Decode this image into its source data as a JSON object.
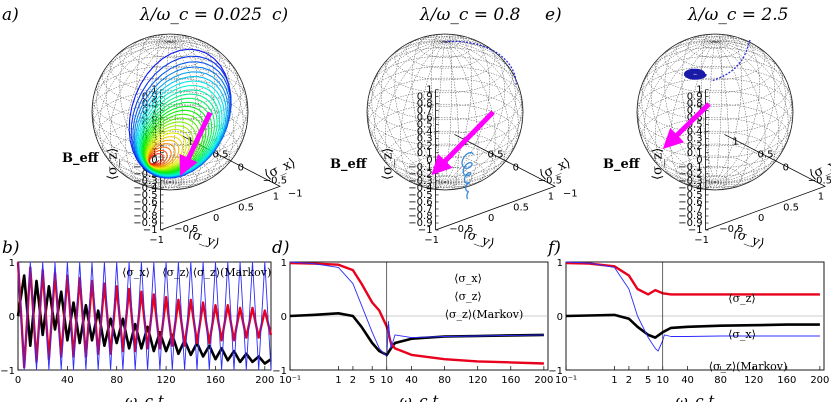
{
  "panels": {
    "a": {
      "letter": "a)",
      "title": "λ/ω_c = 0.025",
      "beff": "B_eff"
    },
    "c": {
      "letter": "c)",
      "title": "λ/ω_c = 0.8",
      "beff": "B_eff"
    },
    "e": {
      "letter": "e)",
      "title": "λ/ω_c = 2.5",
      "beff": "B_eff"
    },
    "b": {
      "letter": "b)"
    },
    "d": {
      "letter": "d)"
    },
    "f": {
      "letter": "f)"
    }
  },
  "sphere_axes": {
    "z_label": "⟨σ_z⟩",
    "y_label": "⟨σ_y⟩",
    "x_label": "⟨σ_x⟩",
    "z_ticks": [
      "1",
      "0.9",
      "0.8",
      "0.7",
      "0.6",
      "0.5",
      "0.4",
      "0.3",
      "0.2",
      "0.1",
      "0",
      "−0.1",
      "−0.2",
      "−0.3",
      "−0.4",
      "−0.5",
      "−0.6",
      "−0.7",
      "−0.8",
      "−0.9",
      "−1"
    ],
    "y_ticks": [
      "−1",
      "−0.5",
      "0",
      "0.5",
      "1"
    ],
    "x_ticks": [
      "−1",
      "−0.5",
      "0",
      "0.5",
      "1"
    ]
  },
  "colors": {
    "beff": "#ff00ff",
    "sigma_x": "#000000",
    "sigma_z": "#e8001c",
    "markov": "#2c2cff"
  },
  "legend": {
    "sx": "⟨σ_x⟩",
    "sz": "⟨σ_z⟩",
    "markov": "⟨σ_z⟩(Markov)"
  },
  "chart_data": [
    {
      "type": "line",
      "panel": "b",
      "xlabel": "ω_c t",
      "ylabel": "",
      "xlim": [
        0,
        205
      ],
      "ylim": [
        -1,
        1
      ],
      "xticks": [
        "0",
        "40",
        "80",
        "120",
        "160",
        "200"
      ],
      "yticks": [
        "1",
        "0",
        "−1"
      ],
      "series": [
        {
          "name": "⟨σ_x⟩",
          "x": [
            0,
            5,
            10,
            15,
            20,
            25,
            30,
            35,
            40,
            45,
            50,
            55,
            60,
            65,
            70,
            75,
            80,
            85,
            90,
            95,
            100,
            105,
            110,
            115,
            120,
            125,
            130,
            135,
            140,
            145,
            150,
            155,
            160,
            165,
            170,
            175,
            180,
            185,
            190,
            195,
            200,
            205
          ],
          "y": [
            0.0,
            0.75,
            -0.55,
            0.65,
            -0.35,
            0.55,
            -0.25,
            0.45,
            -0.45,
            0.25,
            -0.5,
            0.2,
            -0.45,
            0.1,
            -0.55,
            -0.05,
            -0.5,
            -0.05,
            -0.6,
            -0.15,
            -0.6,
            -0.2,
            -0.65,
            -0.3,
            -0.65,
            -0.35,
            -0.7,
            -0.45,
            -0.72,
            -0.5,
            -0.75,
            -0.55,
            -0.8,
            -0.6,
            -0.82,
            -0.65,
            -0.85,
            -0.7,
            -0.85,
            -0.75,
            -0.88,
            -0.8
          ]
        },
        {
          "name": "⟨σ_z⟩",
          "x": [
            0,
            5,
            10,
            15,
            20,
            25,
            30,
            35,
            40,
            45,
            50,
            55,
            60,
            65,
            70,
            75,
            80,
            85,
            90,
            95,
            100,
            105,
            110,
            115,
            120,
            125,
            130,
            135,
            140,
            145,
            150,
            155,
            160,
            165,
            170,
            175,
            180,
            185,
            190,
            195,
            200,
            205
          ],
          "y": [
            1.0,
            -0.95,
            0.9,
            -0.85,
            0.85,
            -0.8,
            0.8,
            -0.75,
            0.75,
            -0.75,
            0.7,
            -0.75,
            0.65,
            -0.7,
            0.6,
            -0.7,
            0.55,
            -0.65,
            0.5,
            -0.65,
            0.45,
            -0.6,
            0.4,
            -0.6,
            0.35,
            -0.55,
            0.3,
            -0.55,
            0.3,
            -0.5,
            0.25,
            -0.5,
            0.2,
            -0.45,
            0.2,
            -0.45,
            0.15,
            -0.4,
            0.15,
            -0.4,
            0.1,
            -0.35
          ]
        },
        {
          "name": "⟨σ_z⟩(Markov)",
          "x": [
            0,
            5,
            10,
            15,
            20,
            25,
            30,
            35,
            40,
            45,
            50,
            55,
            60,
            65,
            70,
            75,
            80,
            85,
            90,
            95,
            100,
            105,
            110,
            115,
            120,
            125,
            130,
            135,
            140,
            145,
            150,
            155,
            160,
            165,
            170,
            175,
            180,
            185,
            190,
            195,
            200,
            205
          ],
          "y": [
            1.0,
            -1.0,
            1.0,
            -1.0,
            1.0,
            -1.0,
            1.0,
            -1.0,
            1.0,
            -1.0,
            1.0,
            -1.0,
            1.0,
            -1.0,
            1.0,
            -1.0,
            1.0,
            -1.0,
            1.0,
            -1.0,
            1.0,
            -1.0,
            1.0,
            -1.0,
            1.0,
            -1.0,
            1.0,
            -1.0,
            1.0,
            -1.0,
            1.0,
            -1.0,
            1.0,
            -1.0,
            1.0,
            -1.0,
            1.0,
            -1.0,
            1.0,
            -1.0,
            1.0,
            -1.0
          ]
        }
      ]
    },
    {
      "type": "line",
      "panel": "d",
      "xlabel": "ω_c t",
      "ylabel": "",
      "xscale": "log then linear (break at 10)",
      "xticks": [
        "10⁻¹",
        "1",
        "2",
        "5",
        "10",
        "40",
        "80",
        "120",
        "160",
        "200"
      ],
      "yticks": [
        "1",
        "0",
        "−1"
      ],
      "ylim": [
        -1,
        1
      ],
      "series": [
        {
          "name": "⟨σ_x⟩",
          "x": [
            0.1,
            0.3,
            1,
            2,
            3,
            5,
            7,
            10,
            15,
            20,
            40,
            80,
            120,
            160,
            200
          ],
          "y": [
            0.0,
            0.02,
            0.05,
            0.0,
            -0.2,
            -0.5,
            -0.65,
            -0.72,
            -0.6,
            -0.5,
            -0.42,
            -0.38,
            -0.37,
            -0.36,
            -0.35
          ]
        },
        {
          "name": "⟨σ_z⟩",
          "x": [
            0.1,
            0.3,
            1,
            2,
            3,
            5,
            7,
            10,
            15,
            20,
            40,
            80,
            120,
            160,
            200
          ],
          "y": [
            0.98,
            0.97,
            0.95,
            0.85,
            0.6,
            0.25,
            0.1,
            -0.2,
            -0.5,
            -0.6,
            -0.72,
            -0.8,
            -0.84,
            -0.86,
            -0.88
          ]
        },
        {
          "name": "⟨σ_z⟩(Markov)",
          "x": [
            0.1,
            0.3,
            1,
            2,
            3,
            5,
            7,
            10,
            12,
            15,
            20,
            40,
            80,
            120,
            160,
            200
          ],
          "y": [
            1.0,
            0.97,
            0.9,
            0.6,
            0.2,
            -0.3,
            -0.6,
            -0.75,
            -0.1,
            -0.6,
            -0.35,
            -0.4,
            -0.38,
            -0.37,
            -0.36,
            -0.35
          ]
        }
      ]
    },
    {
      "type": "line",
      "panel": "f",
      "xlabel": "ω_c t",
      "ylabel": "",
      "xscale": "log then linear (break at 10)",
      "xticks": [
        "10⁻¹",
        "1",
        "2",
        "5",
        "10",
        "40",
        "80",
        "120",
        "160",
        "200"
      ],
      "yticks": [
        "1",
        "0",
        "−1"
      ],
      "ylim": [
        -1,
        1
      ],
      "series": [
        {
          "name": "⟨σ_z⟩",
          "x": [
            0.1,
            0.3,
            1,
            2,
            3,
            5,
            7,
            10,
            20,
            40,
            80,
            120,
            160,
            200
          ],
          "y": [
            0.98,
            0.97,
            0.92,
            0.75,
            0.5,
            0.4,
            0.48,
            0.42,
            0.4,
            0.4,
            0.4,
            0.4,
            0.4,
            0.4
          ]
        },
        {
          "name": "⟨σ_x⟩",
          "x": [
            0.1,
            0.3,
            1,
            2,
            3,
            5,
            7,
            10,
            20,
            40,
            80,
            120,
            160,
            200
          ],
          "y": [
            0.0,
            0.01,
            0.02,
            -0.05,
            -0.2,
            -0.35,
            -0.4,
            -0.3,
            -0.22,
            -0.2,
            -0.18,
            -0.17,
            -0.16,
            -0.16
          ]
        },
        {
          "name": "⟨σ_z⟩(Markov)",
          "x": [
            0.1,
            0.3,
            1,
            2,
            3,
            5,
            7,
            8,
            10,
            12,
            20,
            40,
            80,
            120,
            160,
            200
          ],
          "y": [
            1.0,
            0.98,
            0.9,
            0.5,
            0.0,
            -0.4,
            -0.6,
            -0.65,
            -0.45,
            -0.35,
            -0.38,
            -0.38,
            -0.37,
            -0.37,
            -0.37,
            -0.37
          ]
        }
      ]
    }
  ]
}
